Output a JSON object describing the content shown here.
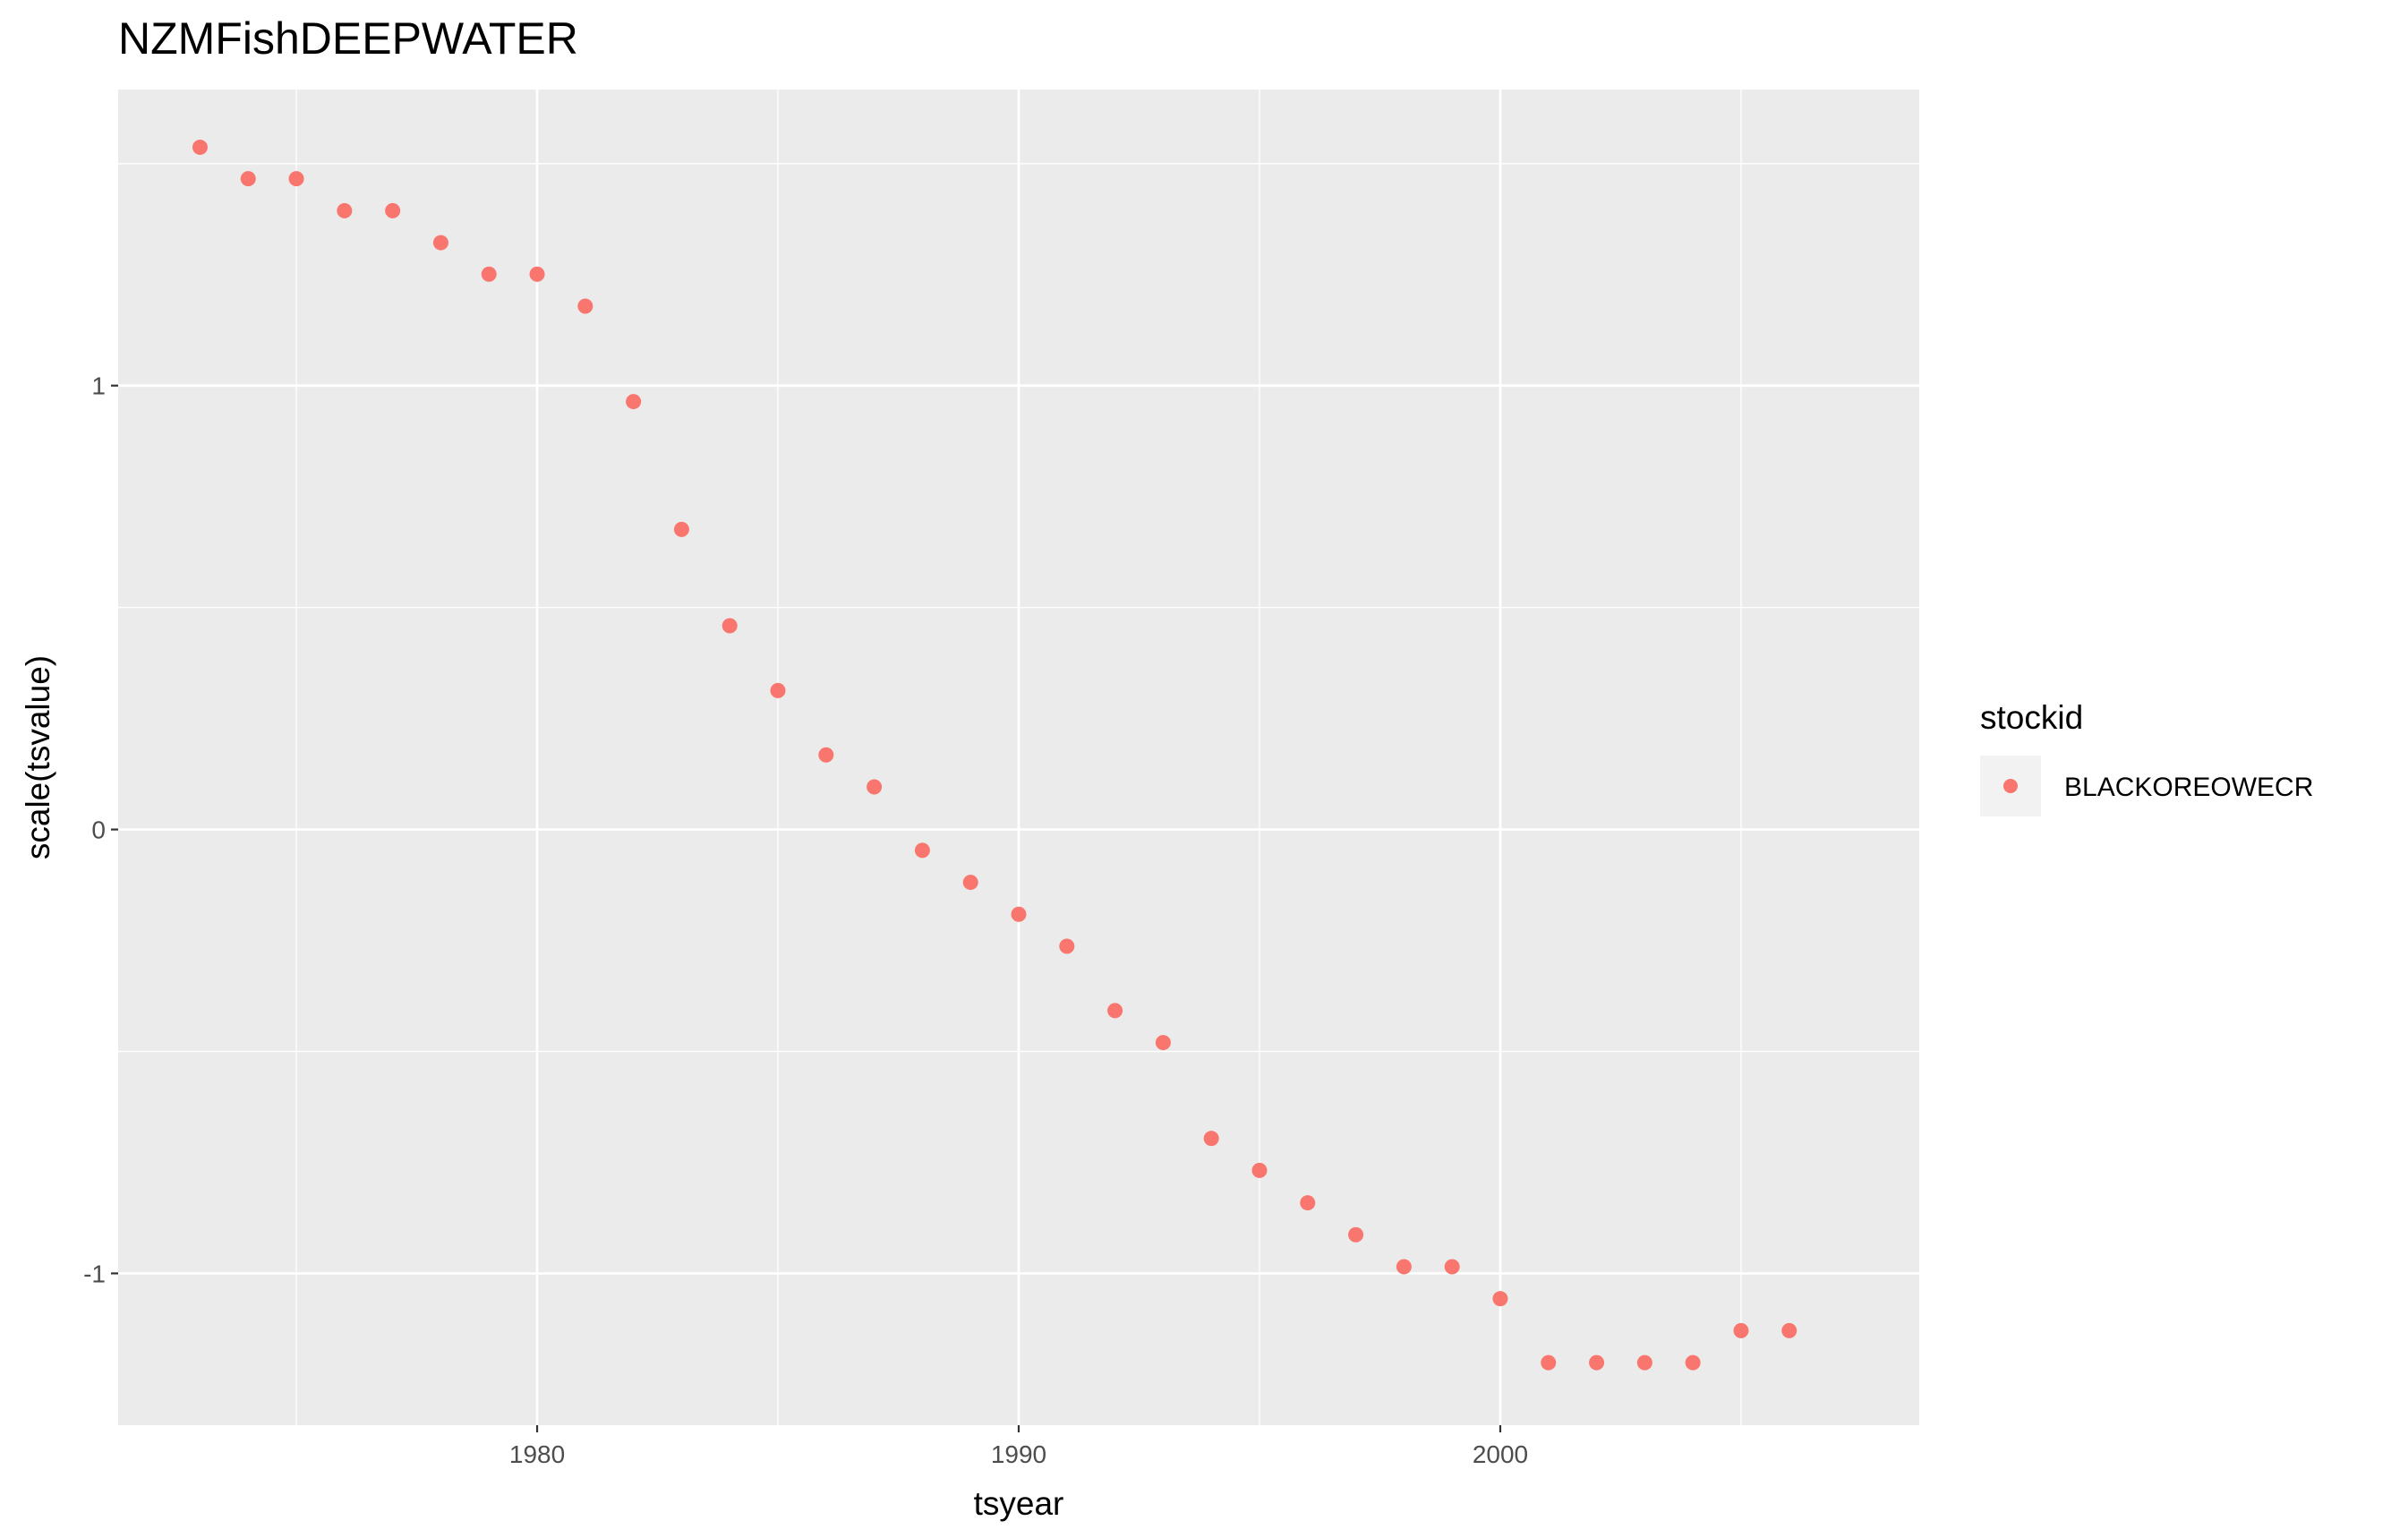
{
  "chart_data": {
    "type": "scatter",
    "title": "NZMFishDEEPWATER",
    "xlabel": "tsyear",
    "ylabel": "scale(tsvalue)",
    "xlim": [
      1971.3,
      2008.7
    ],
    "ylim": [
      -1.342,
      1.667
    ],
    "x_ticks": [
      1980,
      1990,
      2000
    ],
    "x_tick_labels": [
      "1980",
      "1990",
      "2000"
    ],
    "y_ticks": [
      -1,
      0,
      1
    ],
    "y_tick_labels": [
      "-1",
      "0",
      "1"
    ],
    "grid": true,
    "legend": {
      "title": "stockid",
      "position": "right"
    },
    "series": [
      {
        "name": "BLACKOREOWECR",
        "color": "#F8766D",
        "x": [
          1973,
          1974,
          1975,
          1976,
          1977,
          1978,
          1979,
          1980,
          1981,
          1982,
          1983,
          1984,
          1985,
          1986,
          1987,
          1988,
          1989,
          1990,
          1991,
          1992,
          1993,
          1994,
          1995,
          1996,
          1997,
          1998,
          1999,
          2000,
          2001,
          2002,
          2003,
          2004,
          2005,
          2006
        ],
        "y": [
          1.537,
          1.466,
          1.466,
          1.394,
          1.394,
          1.322,
          1.251,
          1.251,
          1.179,
          0.964,
          0.676,
          0.459,
          0.313,
          0.168,
          0.096,
          -0.047,
          -0.119,
          -0.191,
          -0.263,
          -0.408,
          -0.48,
          -0.696,
          -0.768,
          -0.841,
          -0.913,
          -0.985,
          -0.985,
          -1.057,
          -1.201,
          -1.201,
          -1.201,
          -1.201,
          -1.129,
          -1.129
        ]
      }
    ]
  }
}
